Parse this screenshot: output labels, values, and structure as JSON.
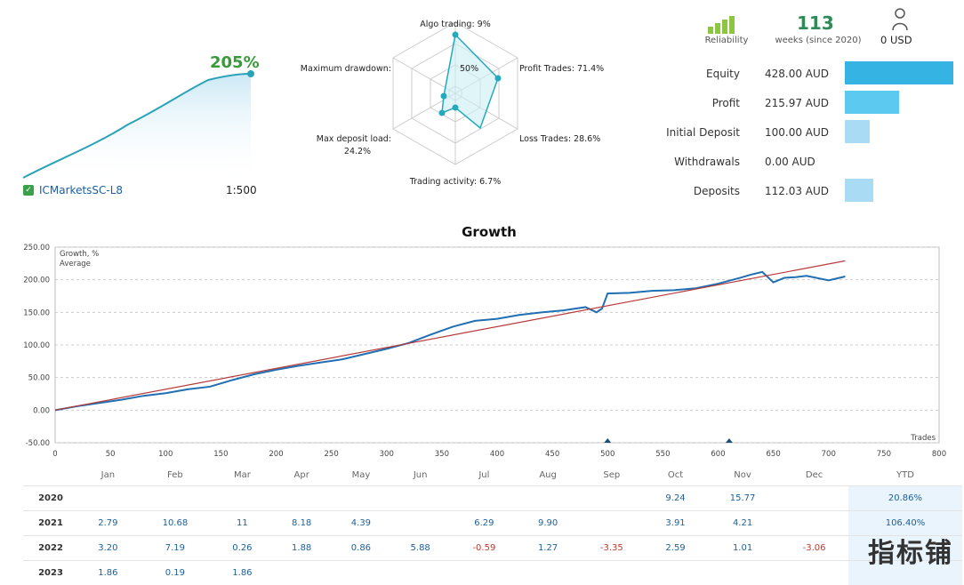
{
  "summary": {
    "growth_pct": "205%",
    "broker": "ICMarketsSC-L8",
    "leverage": "1:500"
  },
  "radar": {
    "labels": {
      "algo": "Algo trading: 9%",
      "profit": "Profit Trades: 71.4%",
      "loss": "Loss Trades: 28.6%",
      "activity": "Trading activity: 6.7%",
      "deposit": "Max deposit load:",
      "deposit_val": "24.2%",
      "drawdown": "Maximum drawdown:",
      "ring_label": "50%"
    }
  },
  "kpis": {
    "reliability_label": "Reliability",
    "weeks_value": "113",
    "weeks_label": "weeks (since 2020)",
    "usd_value": "0 USD"
  },
  "stats": [
    {
      "label": "Equity",
      "value": "428.00 AUD",
      "bar": 1.0,
      "color": "#35b3e3"
    },
    {
      "label": "Profit",
      "value": "215.97 AUD",
      "bar": 0.5,
      "color": "#5ccaf0"
    },
    {
      "label": "Initial Deposit",
      "value": "100.00 AUD",
      "bar": 0.23,
      "color": "#a9dcf4"
    },
    {
      "label": "Withdrawals",
      "value": "0.00 AUD",
      "bar": 0.0,
      "color": "#a9dcf4"
    },
    {
      "label": "Deposits",
      "value": "112.03 AUD",
      "bar": 0.26,
      "color": "#a9dcf4"
    }
  ],
  "chart_data": {
    "type": "line",
    "title": "Growth",
    "xlabel": "Trades",
    "ylim": [
      -50,
      250
    ],
    "xlim": [
      0,
      800
    ],
    "yticks": [
      "250.00",
      "200.00",
      "150.00",
      "100.00",
      "50.00",
      "0.00",
      "-50.00"
    ],
    "xticks": [
      "0",
      "50",
      "100",
      "150",
      "200",
      "250",
      "300",
      "350",
      "400",
      "450",
      "500",
      "550",
      "600",
      "650",
      "700",
      "750",
      "800"
    ],
    "series": [
      {
        "name": "Growth, %",
        "color": "#1f6fb2",
        "x": [
          0,
          20,
          40,
          60,
          80,
          100,
          120,
          140,
          160,
          180,
          200,
          220,
          240,
          260,
          280,
          300,
          320,
          340,
          360,
          380,
          400,
          420,
          440,
          460,
          480,
          490,
          495,
          500,
          520,
          540,
          560,
          580,
          600,
          620,
          630,
          640,
          650,
          660,
          670,
          680,
          700,
          715
        ],
        "y": [
          0,
          6,
          11,
          16,
          22,
          26,
          32,
          36,
          46,
          55,
          62,
          68,
          73,
          78,
          86,
          94,
          103,
          116,
          128,
          137,
          140,
          146,
          150,
          153,
          158,
          150,
          156,
          179,
          180,
          183,
          184,
          187,
          194,
          203,
          208,
          212,
          196,
          203,
          204,
          206,
          199,
          205
        ]
      },
      {
        "name": "Average",
        "color": "#b83a3a",
        "x": [
          0,
          715
        ],
        "y": [
          0,
          229
        ]
      }
    ],
    "markers_x": [
      500,
      610
    ]
  },
  "monthly": {
    "headers": [
      "",
      "Jan",
      "Feb",
      "Mar",
      "Apr",
      "May",
      "Jun",
      "Jul",
      "Aug",
      "Sep",
      "Oct",
      "Nov",
      "Dec",
      "YTD"
    ],
    "rows": [
      {
        "year": "2020",
        "cells": [
          "",
          "",
          "",
          "",
          "",
          "",
          "",
          "",
          "",
          "9.24",
          "15.77",
          "",
          "20.86%"
        ]
      },
      {
        "year": "2021",
        "cells": [
          "2.79",
          "10.68",
          "11",
          "8.18",
          "4.39",
          "",
          "6.29",
          "9.90",
          "",
          "3.91",
          "4.21",
          "",
          "106.40%"
        ]
      },
      {
        "year": "2022",
        "cells": [
          "3.20",
          "7.19",
          "0.26",
          "1.88",
          "0.86",
          "5.88",
          "-0.59",
          "1.27",
          "-3.35",
          "2.59",
          "1.01",
          "-3.06",
          ""
        ]
      },
      {
        "year": "2023",
        "cells": [
          "1.86",
          "0.19",
          "1.86",
          "",
          "",
          "",
          "",
          "",
          "",
          "",
          "",
          "",
          ""
        ]
      }
    ]
  },
  "watermark": "指标铺"
}
